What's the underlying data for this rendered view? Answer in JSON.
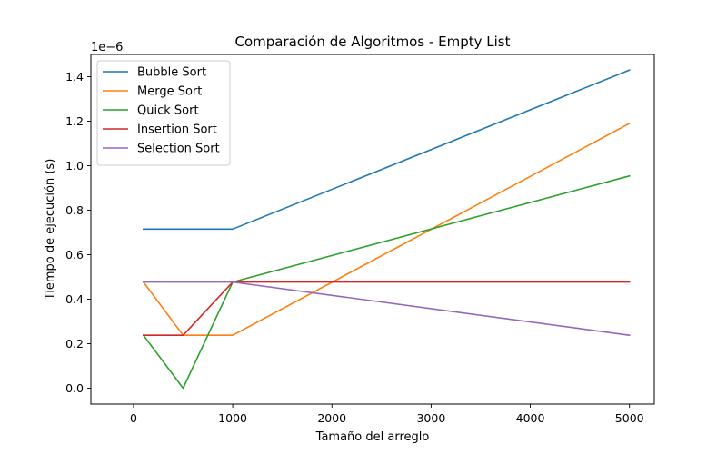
{
  "chart_data": {
    "type": "line",
    "title": "Comparación de Algoritmos - Empty List",
    "xlabel": "Tamaño del arreglo",
    "ylabel": "Tiempo de ejecución (s)",
    "y_offset_label": "1e−6",
    "x": [
      100,
      500,
      1000,
      5000
    ],
    "xlim": [
      -430,
      5250
    ],
    "ylim": [
      -7.15e-08,
      1.5e-06
    ],
    "x_ticks": [
      0,
      1000,
      2000,
      3000,
      4000,
      5000
    ],
    "x_tick_labels": [
      "0",
      "1000",
      "2000",
      "3000",
      "4000",
      "5000"
    ],
    "y_ticks": [
      0.0,
      2e-07,
      4e-07,
      6e-07,
      8e-07,
      1e-06,
      1.2e-06,
      1.4e-06
    ],
    "y_tick_labels": [
      "0.0",
      "0.2",
      "0.4",
      "0.6",
      "0.8",
      "1.0",
      "1.2",
      "1.4"
    ],
    "grid": false,
    "legend_position": "top-left",
    "series": [
      {
        "name": "Bubble Sort",
        "color": "#1f77b4",
        "values": [
          7.15e-07,
          7.15e-07,
          7.15e-07,
          1.43e-06
        ]
      },
      {
        "name": "Merge Sort",
        "color": "#ff7f0e",
        "values": [
          4.77e-07,
          2.38e-07,
          2.38e-07,
          1.19e-06
        ]
      },
      {
        "name": "Quick Sort",
        "color": "#2ca02c",
        "values": [
          2.38e-07,
          0.0,
          4.77e-07,
          9.54e-07
        ]
      },
      {
        "name": "Insertion Sort",
        "color": "#d62728",
        "values": [
          2.38e-07,
          2.38e-07,
          4.77e-07,
          4.77e-07
        ]
      },
      {
        "name": "Selection Sort",
        "color": "#9467bd",
        "values": [
          4.77e-07,
          4.77e-07,
          4.77e-07,
          2.38e-07
        ]
      }
    ]
  }
}
